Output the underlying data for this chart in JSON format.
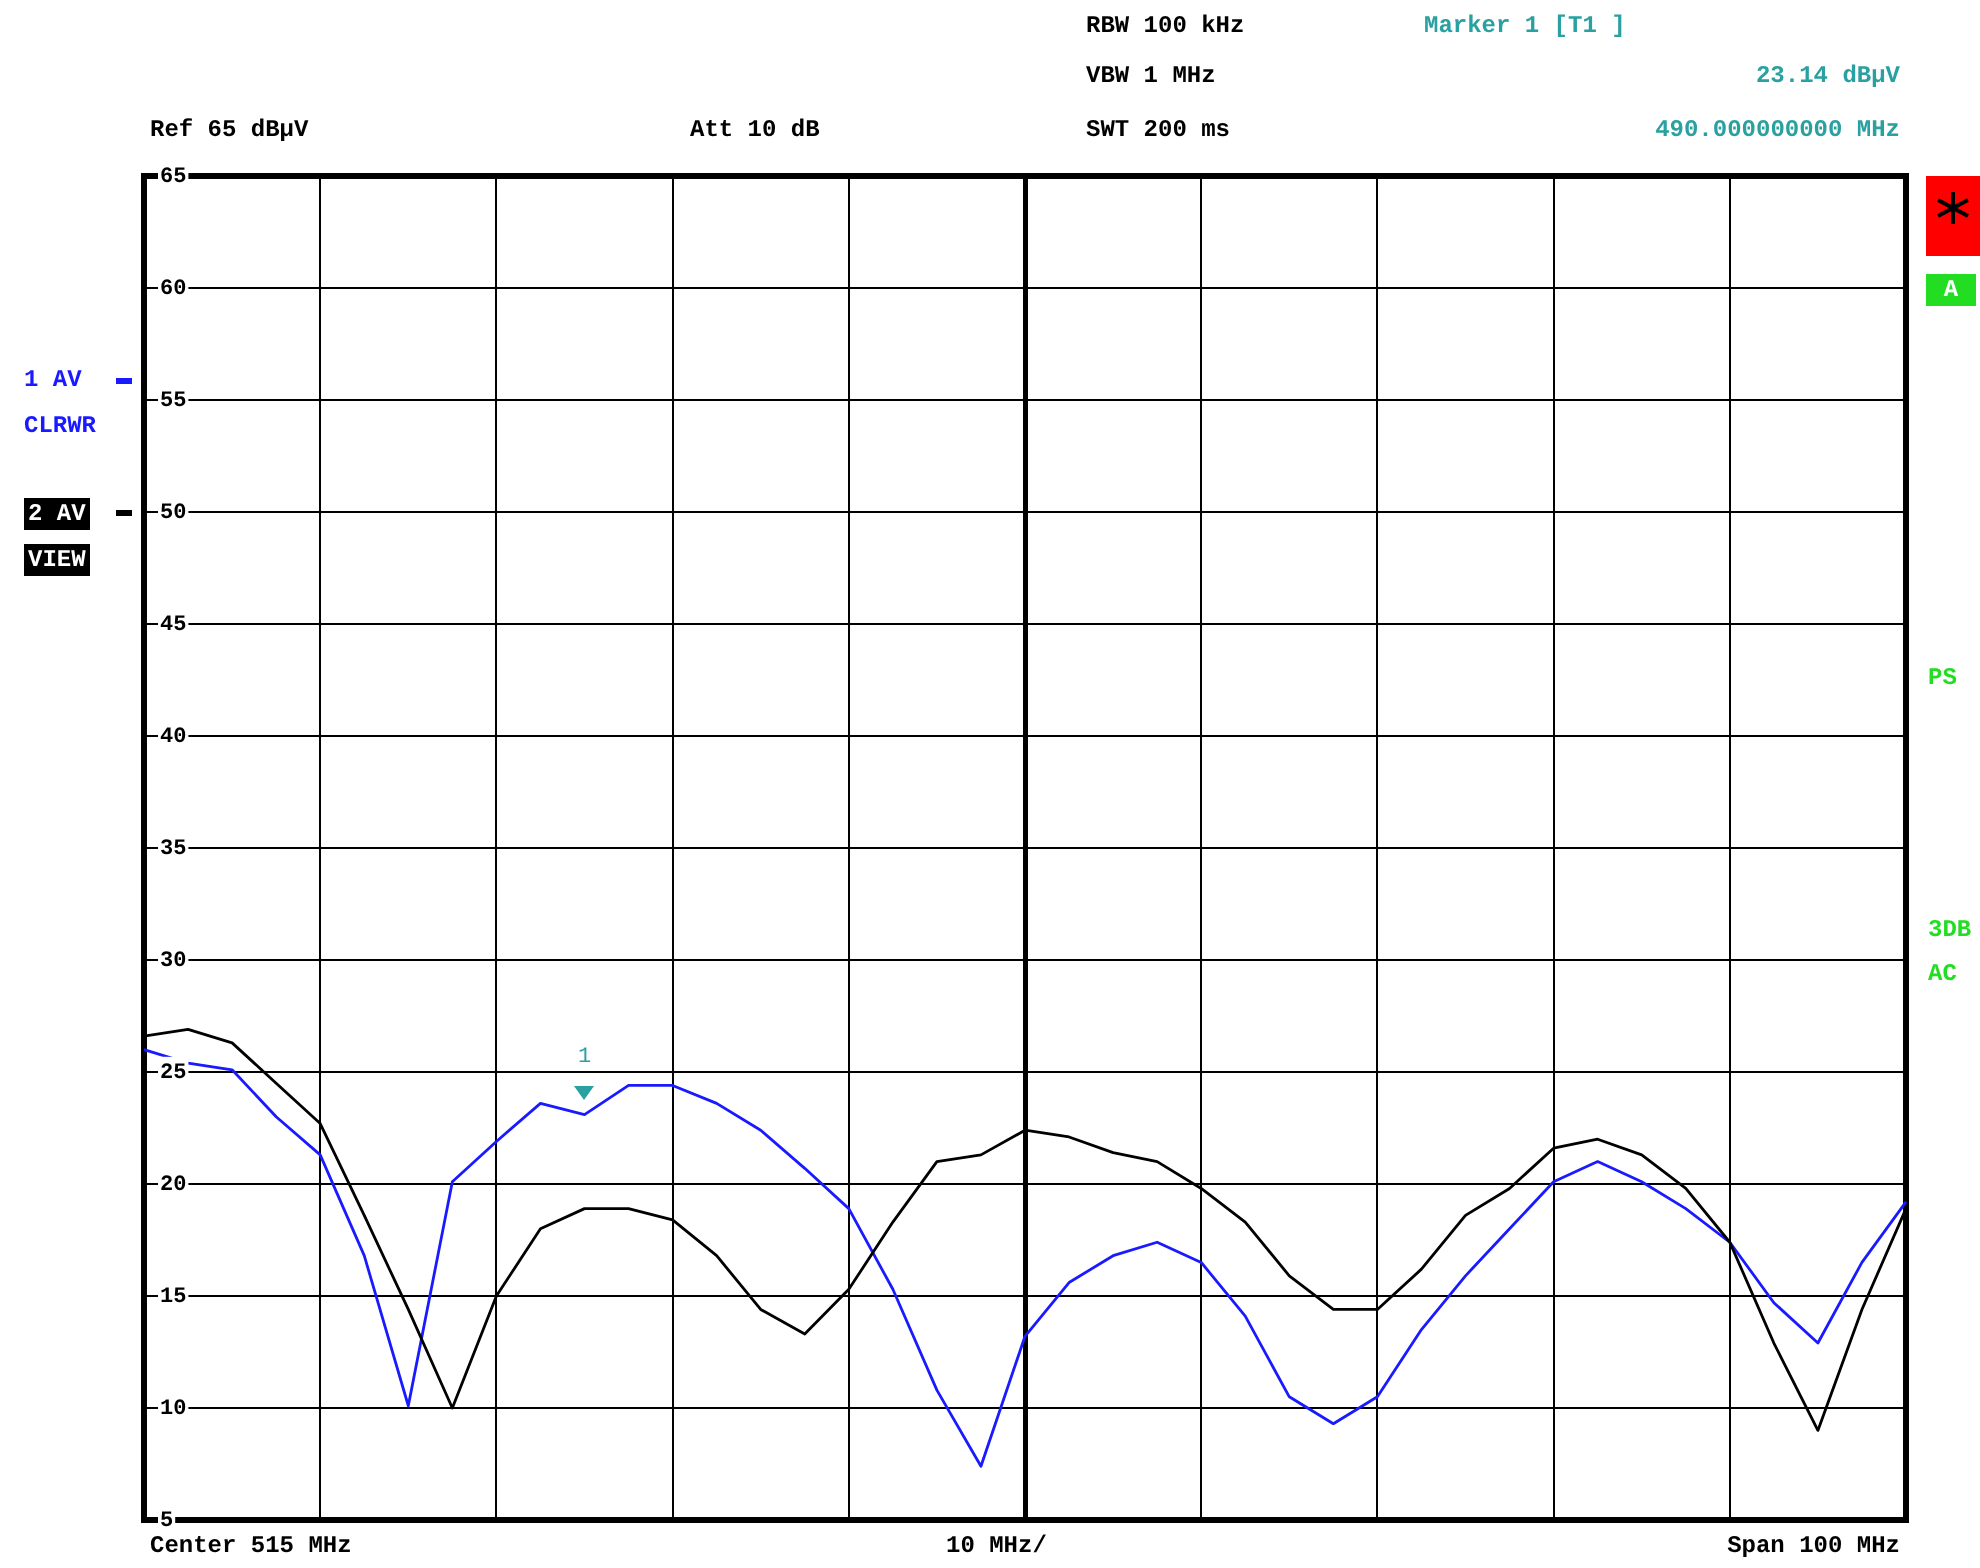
{
  "chart_data": {
    "type": "line",
    "categories": [
      null,
      null,
      null,
      null,
      null,
      null,
      null,
      null,
      null,
      null,
      null,
      null,
      null,
      null,
      null,
      null,
      null,
      null,
      null,
      null,
      null,
      null,
      null,
      null,
      null,
      null,
      null,
      null,
      null,
      null,
      null,
      null,
      null,
      null,
      null,
      null,
      null,
      null,
      null,
      null,
      null
    ],
    "ylim": [
      5,
      65
    ],
    "yticks": [
      5,
      10,
      15,
      20,
      25,
      30,
      35,
      40,
      45,
      50,
      55,
      60,
      65
    ],
    "tick_labels": "y",
    "grid": true,
    "legend": "left",
    "marker": "none",
    "line_style": "solid",
    "series": [
      {
        "name": "1 AV",
        "color": "#1a1aff",
        "values": [
          26.0,
          25.4,
          25.1,
          23.0,
          21.3,
          16.8,
          10.1,
          20.1,
          21.9,
          23.6,
          23.1,
          24.4,
          24.4,
          23.6,
          22.4,
          20.7,
          18.9,
          15.3,
          10.8,
          7.4,
          13.2,
          15.6,
          16.8,
          17.4,
          16.5,
          14.1,
          10.5,
          9.3,
          10.5,
          13.5,
          15.9,
          18.0,
          20.1,
          21.0,
          20.1,
          18.9,
          17.4,
          14.7,
          12.9,
          16.5,
          19.2
        ]
      },
      {
        "name": "2 AV",
        "color": "#000000",
        "values": [
          26.6,
          26.9,
          26.3,
          24.5,
          22.7,
          18.6,
          14.4,
          10.0,
          15.0,
          18.0,
          18.9,
          18.9,
          18.4,
          16.8,
          14.4,
          13.3,
          15.3,
          18.3,
          21.0,
          21.3,
          22.4,
          22.1,
          21.4,
          21.0,
          19.8,
          18.3,
          15.9,
          14.4,
          14.4,
          16.2,
          18.6,
          19.8,
          21.6,
          22.0,
          21.3,
          19.8,
          17.4,
          12.9,
          9.0,
          14.4,
          18.9
        ]
      }
    ],
    "annotations": [
      "Ref 65 dBµV",
      "Att 10 dB",
      "RBW 100 kHz",
      "VBW 1 MHz",
      "SWT 200 ms",
      "Marker 1 [T1 ]",
      "23.14 dBµV",
      "490.000000000 MHz",
      "CLRWR",
      "VIEW",
      "A",
      "PS",
      "3DB",
      "AC",
      "Center 515 MHz",
      "10 MHz/",
      "Span 100 MHz",
      "1"
    ]
  }
}
